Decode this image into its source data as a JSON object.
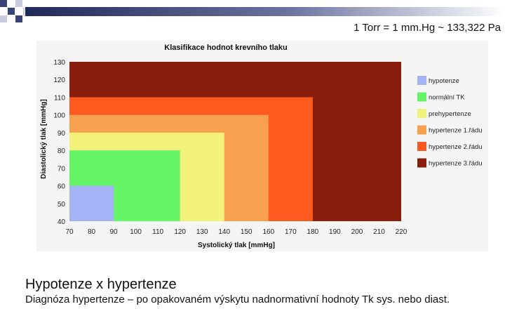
{
  "header": {
    "unit_note": "1 Torr = 1 mm.Hg ~ 133,322 Pa"
  },
  "slide": {
    "title": "Hypotenze x hypertenze",
    "text": "Diagnóza hypertenze – po opakovaném výskytu nadnormativní hodnoty Tk sys. nebo diast."
  },
  "colors": {
    "accent_dark": "#1f2a5a",
    "hypotenze": "#a3b3f5",
    "normalni": "#66f566",
    "prehypertenze": "#f2f27a",
    "hypertenze_1": "#f7a04d",
    "hypertenze_2": "#fc5a1e",
    "hypertenze_3": "#8a1e0c"
  },
  "chart_data": {
    "type": "area",
    "title": "Klasifikace hodnot krevního tlaku",
    "xlabel": "Systolický tlak [mmHg]",
    "ylabel": "Diastolický tlak [mmHg]",
    "xlim": [
      70,
      220
    ],
    "ylim": [
      40,
      130
    ],
    "x_ticks": [
      "70",
      "80",
      "90",
      "100",
      "110",
      "120",
      "130",
      "140",
      "150",
      "160",
      "170",
      "180",
      "190",
      "200",
      "210",
      "220"
    ],
    "y_ticks": [
      "40",
      "50",
      "60",
      "70",
      "80",
      "90",
      "100",
      "110",
      "120",
      "130"
    ],
    "legend_position": "right",
    "series": [
      {
        "name": "hypertenze 3.řádu",
        "x_max": 220,
        "y_max": 130,
        "color_key": "hypertenze_3"
      },
      {
        "name": "hypertenze 2.řádu",
        "x_max": 180,
        "y_max": 110,
        "color_key": "hypertenze_2"
      },
      {
        "name": "hypertenze 1.řádu",
        "x_max": 160,
        "y_max": 100,
        "color_key": "hypertenze_1"
      },
      {
        "name": "prehypertenze",
        "x_max": 140,
        "y_max": 90,
        "color_key": "prehypertenze"
      },
      {
        "name": "normální TK",
        "x_max": 120,
        "y_max": 80,
        "color_key": "normalni"
      },
      {
        "name": "hypotenze",
        "x_max": 90,
        "y_max": 60,
        "color_key": "hypotenze"
      }
    ],
    "legend": [
      "hypotenze",
      "normální TK",
      "prehypertenze",
      "hypertenze 1.řádu",
      "hypertenze 2.řádu",
      "hypertenze 3.řádu"
    ]
  }
}
